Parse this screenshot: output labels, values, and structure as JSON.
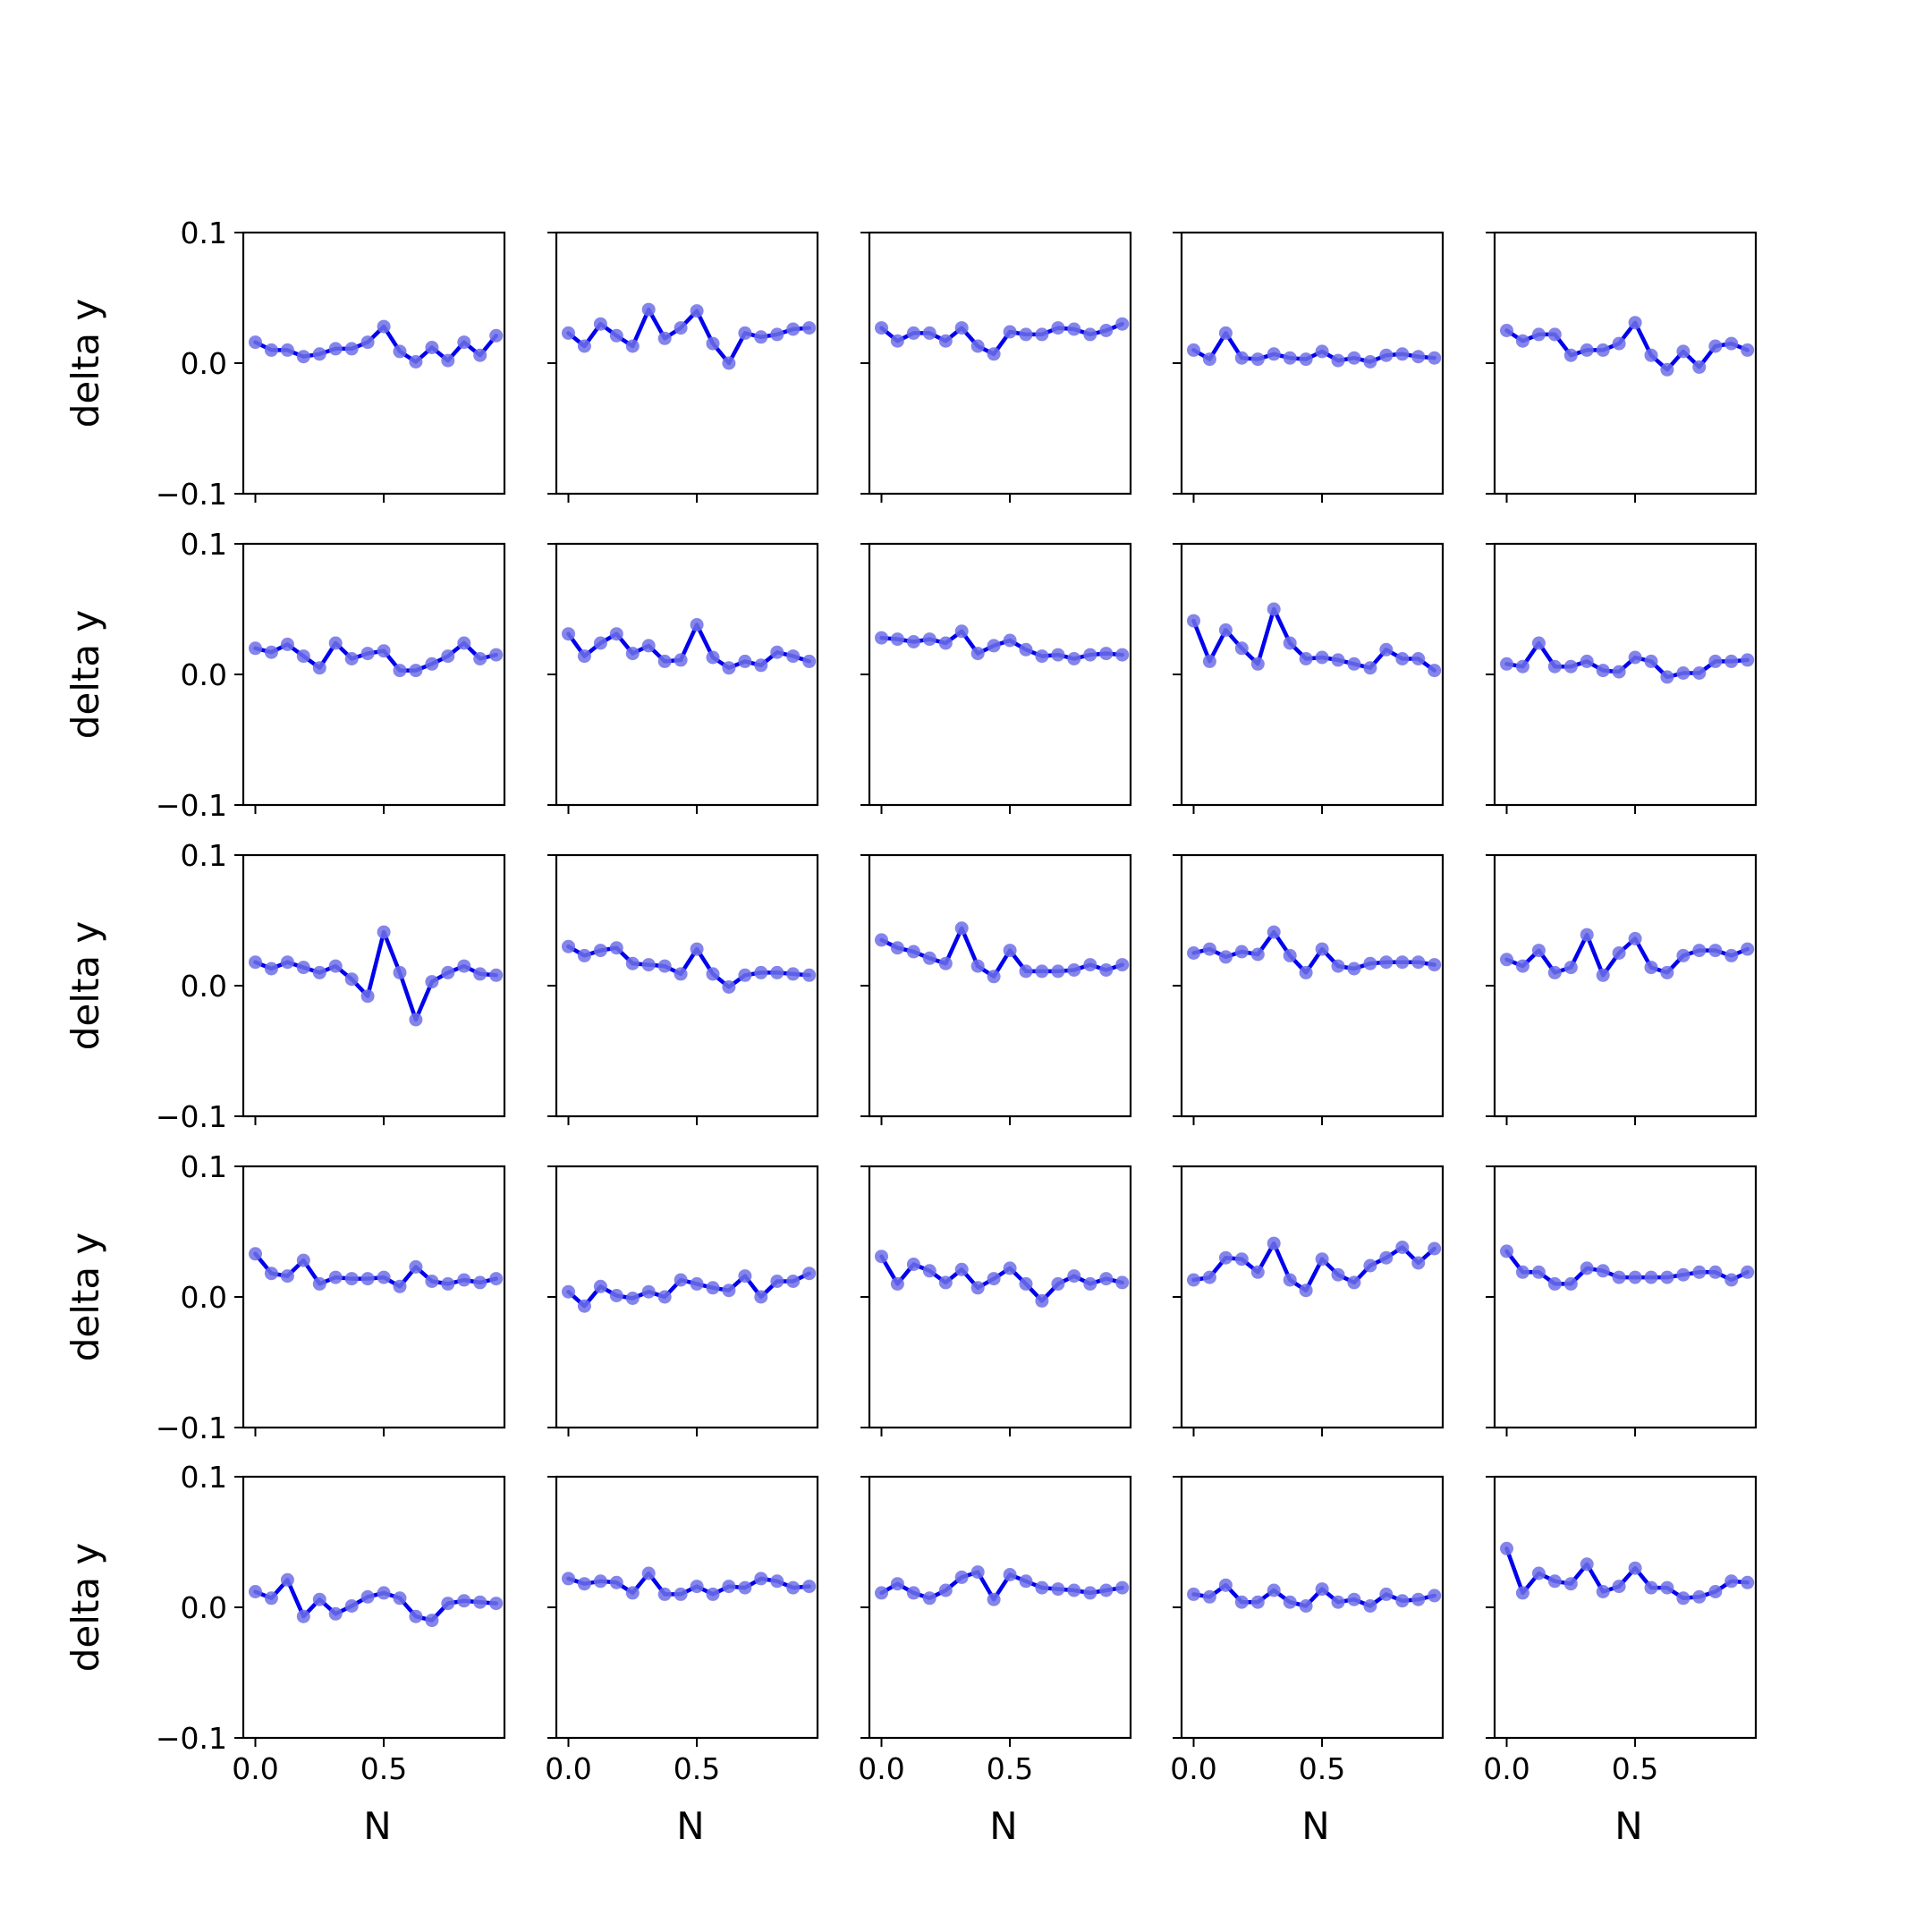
{
  "chart_data": {
    "type": "line",
    "layout": "5x5 small multiples",
    "x": [
      0.0,
      0.0625,
      0.125,
      0.1875,
      0.25,
      0.3125,
      0.375,
      0.4375,
      0.5,
      0.5625,
      0.625,
      0.6875,
      0.75,
      0.8125,
      0.875,
      0.9375
    ],
    "xlim": [
      -0.047,
      0.97
    ],
    "ylim": [
      -0.1,
      0.1
    ],
    "xticks": [
      0.0,
      0.5
    ],
    "xtick_labels": [
      "0.0",
      "0.5"
    ],
    "yticks": [
      -0.1,
      0.0,
      0.1
    ],
    "ytick_labels": [
      "−0.1",
      "0.0",
      "0.1"
    ],
    "xlabel": "N",
    "ylabel": "delta y",
    "grid": false,
    "line_color": "#0000ee",
    "marker_color": "#6f70e6",
    "panels": [
      [
        0.016,
        0.01,
        0.01,
        0.005,
        0.007,
        0.011,
        0.011,
        0.016,
        0.028,
        0.009,
        0.001,
        0.012,
        0.002,
        0.016,
        0.006,
        0.021
      ],
      [
        0.023,
        0.013,
        0.03,
        0.021,
        0.013,
        0.041,
        0.019,
        0.027,
        0.04,
        0.015,
        0.0,
        0.023,
        0.02,
        0.022,
        0.026,
        0.027
      ],
      [
        0.027,
        0.017,
        0.023,
        0.023,
        0.017,
        0.027,
        0.013,
        0.007,
        0.024,
        0.022,
        0.022,
        0.027,
        0.026,
        0.022,
        0.025,
        0.03
      ],
      [
        0.01,
        0.003,
        0.023,
        0.004,
        0.003,
        0.007,
        0.004,
        0.003,
        0.009,
        0.002,
        0.004,
        0.001,
        0.006,
        0.007,
        0.005,
        0.004
      ],
      [
        0.025,
        0.017,
        0.022,
        0.022,
        0.006,
        0.01,
        0.01,
        0.015,
        0.031,
        0.006,
        -0.005,
        0.009,
        -0.003,
        0.013,
        0.015,
        0.01
      ],
      [
        0.02,
        0.017,
        0.023,
        0.014,
        0.005,
        0.024,
        0.012,
        0.016,
        0.018,
        0.003,
        0.003,
        0.008,
        0.014,
        0.024,
        0.012,
        0.015
      ],
      [
        0.031,
        0.014,
        0.024,
        0.031,
        0.016,
        0.022,
        0.01,
        0.011,
        0.038,
        0.013,
        0.005,
        0.01,
        0.007,
        0.017,
        0.014,
        0.01
      ],
      [
        0.028,
        0.027,
        0.025,
        0.027,
        0.024,
        0.033,
        0.016,
        0.022,
        0.026,
        0.019,
        0.014,
        0.015,
        0.012,
        0.015,
        0.016,
        0.015
      ],
      [
        0.041,
        0.01,
        0.034,
        0.02,
        0.008,
        0.05,
        0.024,
        0.012,
        0.013,
        0.011,
        0.008,
        0.005,
        0.019,
        0.012,
        0.012,
        0.003
      ],
      [
        0.008,
        0.006,
        0.024,
        0.006,
        0.006,
        0.01,
        0.003,
        0.002,
        0.013,
        0.01,
        -0.002,
        0.001,
        0.001,
        0.01,
        0.01,
        0.011
      ],
      [
        0.018,
        0.013,
        0.018,
        0.014,
        0.01,
        0.015,
        0.005,
        -0.008,
        0.041,
        0.01,
        -0.026,
        0.003,
        0.01,
        0.015,
        0.009,
        0.008
      ],
      [
        0.03,
        0.023,
        0.027,
        0.029,
        0.017,
        0.016,
        0.015,
        0.009,
        0.028,
        0.009,
        -0.001,
        0.008,
        0.01,
        0.01,
        0.009,
        0.008
      ],
      [
        0.035,
        0.029,
        0.026,
        0.021,
        0.017,
        0.044,
        0.015,
        0.007,
        0.027,
        0.011,
        0.011,
        0.011,
        0.012,
        0.016,
        0.012,
        0.016
      ],
      [
        0.025,
        0.028,
        0.022,
        0.026,
        0.024,
        0.041,
        0.023,
        0.01,
        0.028,
        0.015,
        0.013,
        0.017,
        0.018,
        0.018,
        0.018,
        0.016
      ],
      [
        0.02,
        0.015,
        0.027,
        0.01,
        0.014,
        0.039,
        0.008,
        0.025,
        0.036,
        0.014,
        0.01,
        0.023,
        0.027,
        0.027,
        0.023,
        0.028
      ],
      [
        0.033,
        0.018,
        0.016,
        0.028,
        0.01,
        0.015,
        0.014,
        0.014,
        0.015,
        0.008,
        0.023,
        0.012,
        0.01,
        0.013,
        0.011,
        0.014
      ],
      [
        0.004,
        -0.007,
        0.008,
        0.001,
        -0.001,
        0.004,
        0.0,
        0.013,
        0.01,
        0.007,
        0.005,
        0.016,
        0.0,
        0.012,
        0.012,
        0.018
      ],
      [
        0.031,
        0.01,
        0.025,
        0.02,
        0.011,
        0.021,
        0.007,
        0.014,
        0.022,
        0.01,
        -0.003,
        0.01,
        0.016,
        0.01,
        0.014,
        0.011
      ],
      [
        0.013,
        0.015,
        0.03,
        0.029,
        0.019,
        0.041,
        0.013,
        0.005,
        0.029,
        0.017,
        0.011,
        0.024,
        0.03,
        0.038,
        0.026,
        0.037
      ],
      [
        0.035,
        0.019,
        0.019,
        0.01,
        0.01,
        0.022,
        0.02,
        0.015,
        0.015,
        0.015,
        0.015,
        0.017,
        0.019,
        0.019,
        0.013,
        0.019
      ],
      [
        0.012,
        0.007,
        0.021,
        -0.007,
        0.006,
        -0.005,
        0.001,
        0.008,
        0.011,
        0.007,
        -0.007,
        -0.01,
        0.003,
        0.005,
        0.004,
        0.003
      ],
      [
        0.022,
        0.018,
        0.02,
        0.019,
        0.011,
        0.026,
        0.01,
        0.01,
        0.016,
        0.01,
        0.016,
        0.015,
        0.022,
        0.02,
        0.015,
        0.016
      ],
      [
        0.011,
        0.018,
        0.011,
        0.007,
        0.013,
        0.023,
        0.027,
        0.006,
        0.025,
        0.02,
        0.015,
        0.014,
        0.013,
        0.011,
        0.013,
        0.015
      ],
      [
        0.01,
        0.008,
        0.017,
        0.004,
        0.004,
        0.013,
        0.004,
        0.001,
        0.014,
        0.004,
        0.006,
        0.001,
        0.01,
        0.005,
        0.006,
        0.009
      ],
      [
        0.045,
        0.011,
        0.026,
        0.02,
        0.018,
        0.033,
        0.012,
        0.016,
        0.03,
        0.015,
        0.015,
        0.007,
        0.008,
        0.012,
        0.02,
        0.019
      ]
    ]
  }
}
